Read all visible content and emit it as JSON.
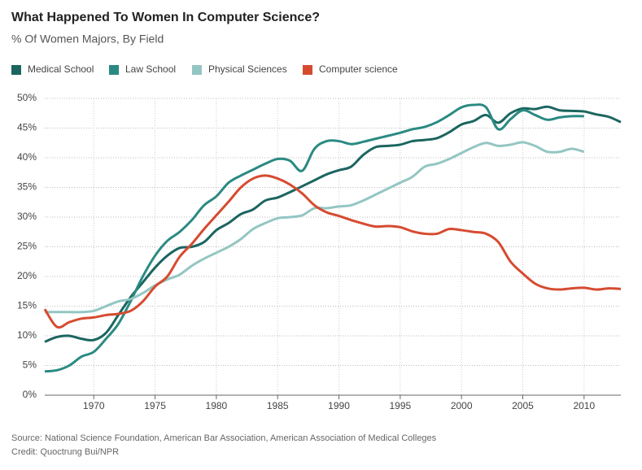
{
  "chart_data": {
    "type": "line",
    "title": "What Happened To Women In Computer Science?",
    "subtitle": "% Of Women Majors, By Field",
    "source": "Source: National Science Foundation, American Bar Association, American Association of Medical Colleges",
    "credit": "Credit: Quoctrung Bui/NPR",
    "x": [
      1966,
      1967,
      1968,
      1969,
      1970,
      1971,
      1972,
      1973,
      1974,
      1975,
      1976,
      1977,
      1978,
      1979,
      1980,
      1981,
      1982,
      1983,
      1984,
      1985,
      1986,
      1987,
      1988,
      1989,
      1990,
      1991,
      1992,
      1993,
      1994,
      1995,
      1996,
      1997,
      1998,
      1999,
      2000,
      2001,
      2002,
      2003,
      2004,
      2005,
      2006,
      2007,
      2008,
      2009,
      2010,
      2011,
      2012,
      2013
    ],
    "series": [
      {
        "name": "Medical School",
        "color": "#1b6560",
        "values": [
          9,
          9.8,
          10,
          9.5,
          9.3,
          10.5,
          13.5,
          16.5,
          19,
          21.5,
          23.5,
          24.8,
          25,
          25.8,
          27.8,
          29,
          30.5,
          31.3,
          32.8,
          33.3,
          34.2,
          35.2,
          36.2,
          37.2,
          37.9,
          38.5,
          40.5,
          41.8,
          42,
          42.2,
          42.8,
          43,
          43.3,
          44.3,
          45.6,
          46.2,
          47.2,
          45.9,
          47.5,
          48.3,
          48.2,
          48.6,
          48,
          47.9,
          47.8,
          47.3,
          46.9,
          46
        ]
      },
      {
        "name": "Law School",
        "color": "#2a8a82",
        "values": [
          4,
          4.2,
          5,
          6.5,
          7.3,
          9.5,
          12,
          15.8,
          20,
          23.5,
          26,
          27.5,
          29.5,
          32,
          33.5,
          35.8,
          37,
          38,
          39,
          39.8,
          39.5,
          37.8,
          41.5,
          42.8,
          42.8,
          42.3,
          42.7,
          43.2,
          43.7,
          44.2,
          44.8,
          45.2,
          46,
          47.2,
          48.5,
          48.9,
          48.5,
          44.8,
          46.5,
          48,
          47.2,
          46.4,
          46.8,
          47,
          47,
          null,
          null,
          null
        ]
      },
      {
        "name": "Physical Sciences",
        "color": "#93c6c3",
        "values": [
          14,
          14,
          14,
          14,
          14.2,
          15,
          15.8,
          16.2,
          17.2,
          18.5,
          19.5,
          20.3,
          21.8,
          23,
          24,
          25,
          26.3,
          28,
          29,
          29.8,
          30,
          30.3,
          31.5,
          31.5,
          31.8,
          32,
          32.8,
          33.8,
          34.8,
          35.8,
          36.8,
          38.5,
          39,
          39.8,
          40.8,
          41.8,
          42.5,
          42,
          42.2,
          42.6,
          42,
          41,
          41,
          41.5,
          41,
          null,
          null,
          null
        ]
      },
      {
        "name": "Computer science",
        "color": "#d64b30",
        "values": [
          14.5,
          11.5,
          12.3,
          12.9,
          13.1,
          13.5,
          13.7,
          14.2,
          15.8,
          18.3,
          20,
          23.3,
          25.5,
          28,
          30.3,
          32.6,
          35,
          36.5,
          37,
          36.5,
          35.5,
          34,
          32,
          30.8,
          30.2,
          29.5,
          28.9,
          28.4,
          28.5,
          28.3,
          27.6,
          27.2,
          27.2,
          28,
          27.8,
          27.5,
          27.2,
          25.8,
          22.5,
          20.5,
          18.8,
          18,
          17.8,
          18,
          18.1,
          17.8,
          18,
          17.9
        ]
      }
    ],
    "xlim": [
      1966,
      2013
    ],
    "xticks": [
      1970,
      1975,
      1980,
      1985,
      1990,
      1995,
      2000,
      2005,
      2010
    ],
    "ylim": [
      0,
      50
    ],
    "yticks": [
      {
        "value": 0,
        "label": "0%"
      },
      {
        "value": 5,
        "label": "5%"
      },
      {
        "value": 10,
        "label": "10%"
      },
      {
        "value": 15,
        "label": "15%"
      },
      {
        "value": 20,
        "label": "20%"
      },
      {
        "value": 25,
        "label": "25%"
      },
      {
        "value": 30,
        "label": "30%"
      },
      {
        "value": 35,
        "label": "35%"
      },
      {
        "value": 40,
        "label": "40%"
      },
      {
        "value": 45,
        "label": "45%"
      },
      {
        "value": 50,
        "label": "50%"
      }
    ],
    "grid": true
  }
}
